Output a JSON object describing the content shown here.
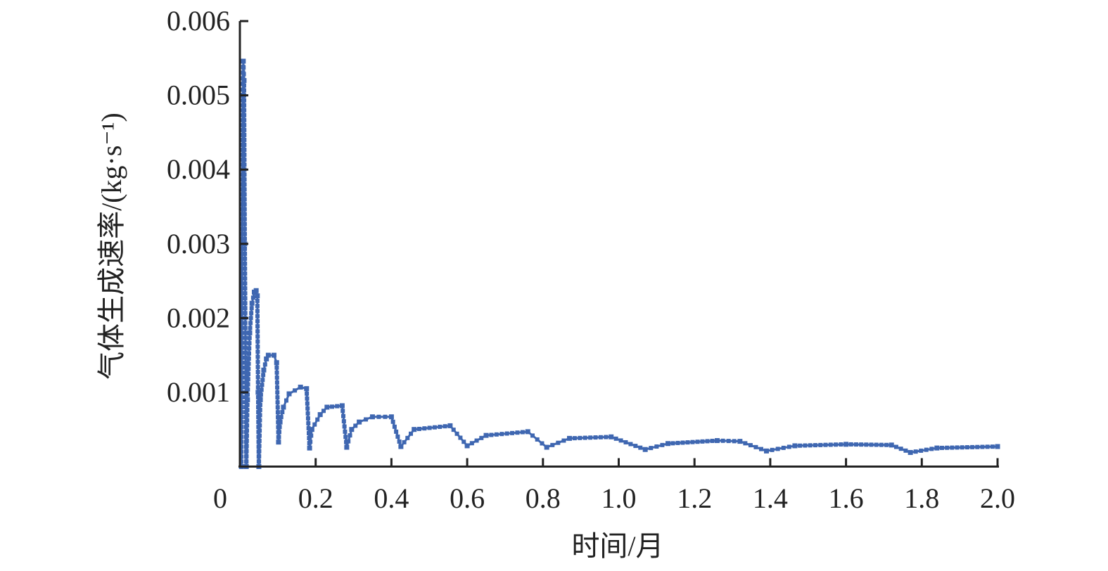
{
  "chart_data": {
    "type": "line",
    "title": "",
    "xlabel": "时间/月",
    "ylabel": "气体生成速率/(kg·s⁻¹)",
    "xlim": [
      0,
      2.0
    ],
    "ylim": [
      0,
      0.006
    ],
    "xticks": [
      "0",
      "0.2",
      "0.4",
      "0.6",
      "0.8",
      "1.0",
      "1.2",
      "1.4",
      "1.6",
      "1.8",
      "2.0"
    ],
    "yticks": [
      "0.001",
      "0.002",
      "0.003",
      "0.004",
      "0.005",
      "0.006"
    ],
    "grid": false,
    "color": "#3f67b1",
    "marker": "square",
    "series": [
      {
        "x": [
          0.004,
          0.006,
          0.008,
          0.009,
          0.011,
          0.013,
          0.017,
          0.02,
          0.026,
          0.032,
          0.038,
          0.043,
          0.046,
          0.048,
          0.05,
          0.054,
          0.063,
          0.07,
          0.075,
          0.09,
          0.097,
          0.102,
          0.106,
          0.115,
          0.13,
          0.16,
          0.176,
          0.184,
          0.19,
          0.212,
          0.23,
          0.27,
          0.282,
          0.295,
          0.315,
          0.35,
          0.4,
          0.425,
          0.46,
          0.555,
          0.6,
          0.65,
          0.76,
          0.81,
          0.87,
          0.98,
          1.07,
          1.13,
          1.26,
          1.32,
          1.39,
          1.465,
          1.6,
          1.72,
          1.77,
          1.84,
          2.0
        ],
        "y": [
          0,
          0.003,
          0.005,
          0.00546,
          0.0052,
          0.003,
          0,
          0.0009,
          0.0018,
          0.0022,
          0.00235,
          0.00237,
          0.0023,
          0.001,
          0,
          0.0009,
          0.0013,
          0.00145,
          0.0015,
          0.0015,
          0.0014,
          0.00033,
          0.0006,
          0.0008,
          0.00098,
          0.00107,
          0.00105,
          0.00025,
          0.0005,
          0.0007,
          0.0008,
          0.00082,
          0.00026,
          0.0005,
          0.0006,
          0.00067,
          0.00067,
          0.00027,
          0.0005,
          0.00055,
          0.00028,
          0.00042,
          0.00047,
          0.00026,
          0.00038,
          0.0004,
          0.00023,
          0.00031,
          0.00035,
          0.00034,
          0.00021,
          0.00028,
          0.0003,
          0.00029,
          0.00019,
          0.00025,
          0.00027
        ]
      }
    ]
  }
}
